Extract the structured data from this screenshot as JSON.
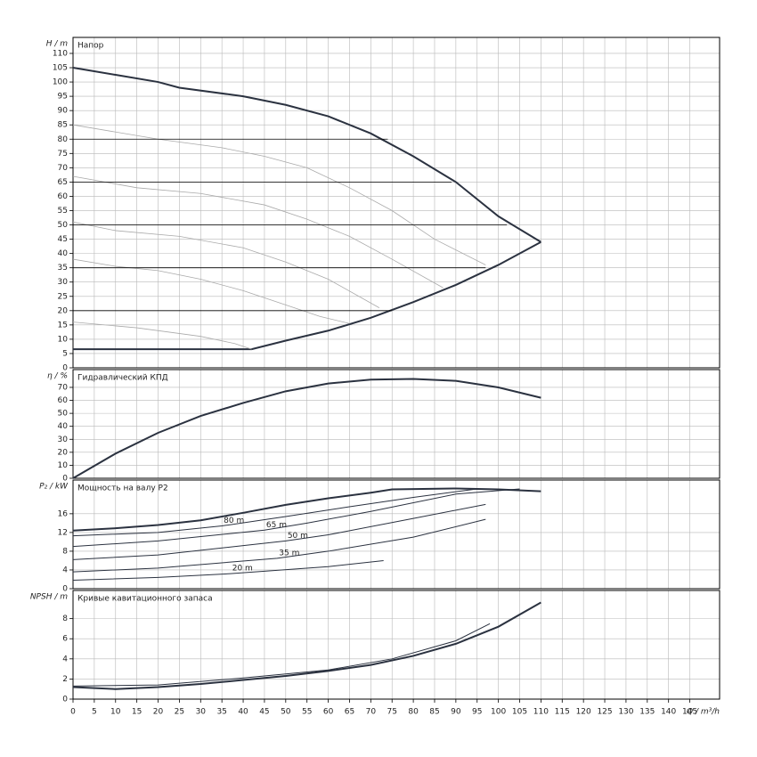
{
  "chart_data": [
    {
      "type": "line",
      "title": "Напор",
      "ylabel": "H / m",
      "ylim": [
        0,
        115.6
      ],
      "yticks": [
        0,
        5,
        10,
        15,
        20,
        25,
        30,
        35,
        40,
        45,
        50,
        55,
        60,
        65,
        70,
        75,
        80,
        85,
        90,
        95,
        100,
        105,
        110
      ],
      "series": [
        {
          "style": "bold",
          "color": "#2b3240",
          "x": [
            0,
            10,
            20,
            25,
            40,
            50,
            60,
            70,
            80,
            90,
            100,
            110
          ],
          "values": [
            105,
            102.5,
            100,
            98,
            95,
            92,
            88,
            82,
            74,
            65,
            53,
            44
          ]
        },
        {
          "style": "bold",
          "color": "#2b3240",
          "x": [
            0,
            42,
            50,
            60,
            70,
            80,
            90,
            100,
            110
          ],
          "values": [
            6.5,
            6.5,
            9.5,
            13,
            17.5,
            23,
            29,
            36,
            44
          ]
        },
        {
          "style": "thin",
          "color": "#aaaaaa",
          "x": [
            0,
            20,
            35,
            45,
            55,
            65,
            75,
            85,
            97
          ],
          "values": [
            85,
            80,
            77,
            74,
            70,
            63,
            55,
            45,
            36
          ]
        },
        {
          "style": "thin",
          "color": "#aaaaaa",
          "x": [
            0,
            15,
            30,
            45,
            55,
            65,
            75,
            87
          ],
          "values": [
            67,
            63,
            61,
            57,
            52,
            46,
            38,
            28
          ]
        },
        {
          "style": "thin",
          "color": "#aaaaaa",
          "x": [
            0,
            10,
            25,
            40,
            50,
            60,
            72
          ],
          "values": [
            51,
            48,
            46,
            42,
            37,
            31,
            21
          ]
        },
        {
          "style": "thin",
          "color": "#aaaaaa",
          "x": [
            0,
            10,
            20,
            30,
            40,
            50,
            58,
            65
          ],
          "values": [
            38,
            35.5,
            34,
            31,
            27,
            22,
            18,
            15.5
          ]
        },
        {
          "style": "thin",
          "color": "#aaaaaa",
          "x": [
            0,
            15,
            30,
            38,
            42
          ],
          "values": [
            16,
            14,
            11,
            8.5,
            6.5
          ]
        },
        {
          "style": "line",
          "color": "#000000",
          "x": [
            0,
            74
          ],
          "values": [
            80,
            80
          ]
        },
        {
          "style": "line",
          "color": "#000000",
          "x": [
            0,
            89
          ],
          "values": [
            65,
            65
          ]
        },
        {
          "style": "line",
          "color": "#000000",
          "x": [
            0,
            102
          ],
          "values": [
            50,
            50
          ]
        },
        {
          "style": "line",
          "color": "#000000",
          "x": [
            0,
            97
          ],
          "values": [
            35,
            35
          ]
        },
        {
          "style": "line",
          "color": "#000000",
          "x": [
            0,
            75
          ],
          "values": [
            20,
            20
          ]
        }
      ]
    },
    {
      "type": "line",
      "title": "Гидравлический КПД",
      "ylabel": "η / %",
      "ylim": [
        0,
        83.7
      ],
      "yticks": [
        0,
        10,
        20,
        30,
        40,
        50,
        60,
        70
      ],
      "series": [
        {
          "style": "bold",
          "color": "#2b3240",
          "x": [
            0,
            10,
            20,
            30,
            40,
            50,
            60,
            70,
            80,
            90,
            100,
            110
          ],
          "values": [
            0,
            19,
            35,
            48,
            58,
            67,
            73,
            76,
            76.5,
            75,
            70,
            62
          ]
        }
      ]
    },
    {
      "type": "line",
      "title": "Мощность на валу P2",
      "ylabel": "P₂ / kW",
      "ylim": [
        0,
        23.2
      ],
      "yticks": [
        0,
        4,
        8,
        12,
        16
      ],
      "series": [
        {
          "style": "bold",
          "color": "#2b3240",
          "x": [
            0,
            10,
            20,
            30,
            40,
            50,
            60,
            70,
            75,
            90,
            100,
            110
          ],
          "values": [
            12.4,
            12.9,
            13.6,
            14.6,
            16.2,
            17.9,
            19.3,
            20.5,
            21.2,
            21.4,
            21.2,
            20.8
          ]
        },
        {
          "name": "80 m",
          "style": "mid",
          "color": "#2b3240",
          "x": [
            0,
            20,
            35,
            50,
            65,
            80,
            95
          ],
          "values": [
            11.3,
            12,
            13.4,
            15.4,
            17.5,
            19.5,
            21.3
          ]
        },
        {
          "name": "65 m",
          "style": "mid",
          "color": "#2b3240",
          "x": [
            0,
            20,
            45,
            55,
            70,
            90,
            105
          ],
          "values": [
            9,
            10.2,
            12.5,
            14,
            16.5,
            20.2,
            21.3
          ]
        },
        {
          "name": "50 m",
          "style": "mid",
          "color": "#2b3240",
          "x": [
            0,
            20,
            50,
            60,
            80,
            97
          ],
          "values": [
            6.2,
            7.2,
            10.2,
            11.5,
            15,
            18
          ]
        },
        {
          "name": "35 m",
          "style": "mid",
          "color": "#2b3240",
          "x": [
            0,
            20,
            48,
            60,
            80,
            97
          ],
          "values": [
            3.6,
            4.4,
            6.5,
            8,
            11,
            14.8
          ]
        },
        {
          "name": "20 m",
          "style": "mid",
          "color": "#2b3240",
          "x": [
            0,
            20,
            37,
            60,
            73
          ],
          "values": [
            1.8,
            2.4,
            3.2,
            4.7,
            6
          ]
        }
      ]
    },
    {
      "type": "line",
      "title": "Кривые кавитационного запаса",
      "ylabel": "NPSH / m",
      "ylim": [
        0,
        10.8
      ],
      "yticks": [
        0,
        2,
        4,
        6,
        8
      ],
      "xlabel": "Q / m³/h",
      "xlim": [
        0,
        152
      ],
      "xticks": [
        0,
        5,
        10,
        15,
        20,
        25,
        30,
        35,
        40,
        45,
        50,
        55,
        60,
        65,
        70,
        75,
        80,
        85,
        90,
        95,
        100,
        105,
        110,
        115,
        120,
        125,
        130,
        135,
        140,
        145
      ],
      "series": [
        {
          "style": "bold",
          "color": "#2b3240",
          "x": [
            0,
            10,
            20,
            30,
            40,
            50,
            60,
            70,
            80,
            90,
            100,
            110
          ],
          "values": [
            1.2,
            1,
            1.2,
            1.5,
            1.9,
            2.3,
            2.8,
            3.4,
            4.3,
            5.5,
            7.2,
            9.6
          ]
        },
        {
          "style": "mid",
          "color": "#2b3240",
          "x": [
            0,
            20,
            40,
            60,
            75,
            90,
            98
          ],
          "values": [
            1.3,
            1.4,
            2.1,
            2.9,
            4,
            5.8,
            7.5
          ]
        }
      ]
    }
  ]
}
